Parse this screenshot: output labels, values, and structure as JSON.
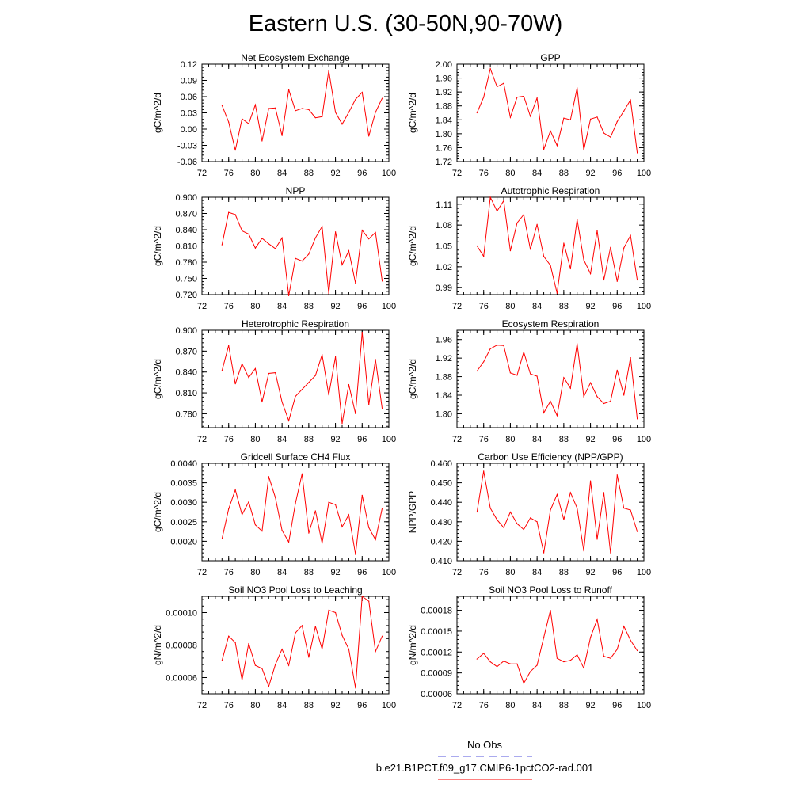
{
  "figure": {
    "title": "Eastern U.S. (30-50N,90-70W)"
  },
  "legend": {
    "entries": [
      {
        "label": "No Obs",
        "color": "#5555dd",
        "style": "dashed"
      },
      {
        "label": "b.e21.B1PCT.f09_g17.CMIP6-1pctCO2-rad.001",
        "color": "#ff0000",
        "style": "solid"
      }
    ]
  },
  "chart_data": [
    {
      "type": "line",
      "title": "Net Ecosystem Exchange",
      "ylabel": "gC/m^2/d",
      "xlabel": "",
      "xlim": [
        72,
        100
      ],
      "ylim": [
        -0.06,
        0.12
      ],
      "color": "#ff0000",
      "xticks": [
        "72",
        "76",
        "80",
        "84",
        "88",
        "92",
        "96",
        "100"
      ],
      "yticks": [
        "-0.06",
        "-0.03",
        "0.00",
        "0.03",
        "0.06",
        "0.09",
        "0.12"
      ],
      "x": [
        75,
        76,
        77,
        78,
        79,
        80,
        81,
        82,
        83,
        84,
        85,
        86,
        87,
        88,
        89,
        90,
        91,
        92,
        93,
        94,
        95,
        96,
        97,
        98,
        99
      ],
      "y": [
        0.044,
        0.013,
        -0.039,
        0.019,
        0.01,
        0.045,
        -0.022,
        0.038,
        0.039,
        -0.012,
        0.073,
        0.034,
        0.038,
        0.036,
        0.021,
        0.023,
        0.108,
        0.031,
        0.009,
        0.031,
        0.055,
        0.068,
        -0.013,
        0.031,
        0.057
      ]
    },
    {
      "type": "line",
      "title": "GPP",
      "ylabel": "gC/m^2/d",
      "xlabel": "",
      "xlim": [
        72,
        100
      ],
      "ylim": [
        1.72,
        2.0
      ],
      "color": "#ff0000",
      "xticks": [
        "72",
        "76",
        "80",
        "84",
        "88",
        "92",
        "96",
        "100"
      ],
      "yticks": [
        "1.72",
        "1.76",
        "1.80",
        "1.84",
        "1.88",
        "1.92",
        "1.96",
        "2.00"
      ],
      "x": [
        75,
        76,
        77,
        78,
        79,
        80,
        81,
        82,
        83,
        84,
        85,
        86,
        87,
        88,
        89,
        90,
        91,
        92,
        93,
        94,
        95,
        96,
        97,
        98,
        99
      ],
      "y": [
        1.86,
        1.905,
        1.987,
        1.935,
        1.945,
        1.847,
        1.905,
        1.908,
        1.85,
        1.903,
        1.755,
        1.808,
        1.766,
        1.845,
        1.84,
        1.932,
        1.753,
        1.842,
        1.848,
        1.802,
        1.79,
        1.835,
        1.865,
        1.897,
        1.745
      ]
    },
    {
      "type": "line",
      "title": "NPP",
      "ylabel": "gC/m^2/d",
      "xlabel": "",
      "xlim": [
        72,
        100
      ],
      "ylim": [
        0.72,
        0.9
      ],
      "color": "#ff0000",
      "xticks": [
        "72",
        "76",
        "80",
        "84",
        "88",
        "92",
        "96",
        "100"
      ],
      "yticks": [
        "0.720",
        "0.750",
        "0.780",
        "0.810",
        "0.840",
        "0.870",
        "0.900"
      ],
      "x": [
        75,
        76,
        77,
        78,
        79,
        80,
        81,
        82,
        83,
        84,
        85,
        86,
        87,
        88,
        89,
        90,
        91,
        92,
        93,
        94,
        95,
        96,
        97,
        98,
        99
      ],
      "y": [
        0.812,
        0.872,
        0.868,
        0.838,
        0.832,
        0.806,
        0.824,
        0.814,
        0.805,
        0.825,
        0.718,
        0.787,
        0.782,
        0.795,
        0.825,
        0.846,
        0.722,
        0.836,
        0.775,
        0.801,
        0.741,
        0.839,
        0.823,
        0.835,
        0.745
      ]
    },
    {
      "type": "line",
      "title": "Autotrophic Respiration",
      "ylabel": "gC/m^2/d",
      "xlabel": "",
      "xlim": [
        72,
        100
      ],
      "ylim": [
        0.98,
        1.12
      ],
      "color": "#ff0000",
      "xticks": [
        "72",
        "76",
        "80",
        "84",
        "88",
        "92",
        "96",
        "100"
      ],
      "yticks": [
        "0.99",
        "1.02",
        "1.05",
        "1.08",
        "1.11"
      ],
      "x": [
        75,
        76,
        77,
        78,
        79,
        80,
        81,
        82,
        83,
        84,
        85,
        86,
        87,
        88,
        89,
        90,
        91,
        92,
        93,
        94,
        95,
        96,
        97,
        98,
        99
      ],
      "y": [
        1.05,
        1.035,
        1.12,
        1.1,
        1.115,
        1.043,
        1.083,
        1.095,
        1.045,
        1.081,
        1.035,
        1.022,
        0.982,
        1.054,
        1.017,
        1.088,
        1.03,
        1.01,
        1.072,
        1.001,
        1.048,
        0.999,
        1.047,
        1.065,
        1.001
      ]
    },
    {
      "type": "line",
      "title": "Heterotrophic Respiration",
      "ylabel": "gC/m^2/d",
      "xlabel": "",
      "xlim": [
        72,
        100
      ],
      "ylim": [
        0.76,
        0.9
      ],
      "color": "#ff0000",
      "xticks": [
        "72",
        "76",
        "80",
        "84",
        "88",
        "92",
        "96",
        "100"
      ],
      "yticks": [
        "0.780",
        "0.810",
        "0.840",
        "0.870",
        "0.900"
      ],
      "x": [
        75,
        76,
        77,
        78,
        79,
        80,
        81,
        82,
        83,
        84,
        85,
        86,
        87,
        88,
        89,
        90,
        91,
        92,
        93,
        94,
        95,
        96,
        97,
        98,
        99
      ],
      "y": [
        0.842,
        0.878,
        0.823,
        0.852,
        0.832,
        0.845,
        0.797,
        0.838,
        0.839,
        0.797,
        0.77,
        0.805,
        0.815,
        0.825,
        0.835,
        0.865,
        0.807,
        0.862,
        0.766,
        0.822,
        0.78,
        0.897,
        0.793,
        0.858,
        0.787
      ]
    },
    {
      "type": "line",
      "title": "Ecosystem Respiration",
      "ylabel": "gC/m^2/d",
      "xlabel": "",
      "xlim": [
        72,
        100
      ],
      "ylim": [
        1.77,
        1.98
      ],
      "color": "#ff0000",
      "xticks": [
        "72",
        "76",
        "80",
        "84",
        "88",
        "92",
        "96",
        "100"
      ],
      "yticks": [
        "1.80",
        "1.84",
        "1.88",
        "1.92",
        "1.96"
      ],
      "x": [
        75,
        76,
        77,
        78,
        79,
        80,
        81,
        82,
        83,
        84,
        85,
        86,
        87,
        88,
        89,
        90,
        91,
        92,
        93,
        94,
        95,
        96,
        97,
        98,
        99
      ],
      "y": [
        1.892,
        1.912,
        1.94,
        1.948,
        1.947,
        1.888,
        1.883,
        1.933,
        1.886,
        1.881,
        1.802,
        1.827,
        1.796,
        1.878,
        1.855,
        1.951,
        1.837,
        1.867,
        1.837,
        1.822,
        1.827,
        1.894,
        1.84,
        1.921,
        1.789
      ]
    },
    {
      "type": "line",
      "title": "Gridcell Surface CH4 Flux",
      "ylabel": "gC/m^2/d",
      "xlabel": "",
      "xlim": [
        72,
        100
      ],
      "ylim": [
        0.0015,
        0.004
      ],
      "color": "#ff0000",
      "xticks": [
        "72",
        "76",
        "80",
        "84",
        "88",
        "92",
        "96",
        "100"
      ],
      "yticks": [
        "0.0020",
        "0.0025",
        "0.0030",
        "0.0035",
        "0.0040"
      ],
      "x": [
        75,
        76,
        77,
        78,
        79,
        80,
        81,
        82,
        83,
        84,
        85,
        86,
        87,
        88,
        89,
        90,
        91,
        92,
        93,
        94,
        95,
        96,
        97,
        98,
        99
      ],
      "y": [
        0.00206,
        0.00283,
        0.00332,
        0.00268,
        0.00301,
        0.00242,
        0.00226,
        0.00366,
        0.00312,
        0.00228,
        0.00198,
        0.00297,
        0.00373,
        0.00221,
        0.00278,
        0.00195,
        0.003,
        0.00294,
        0.00237,
        0.00268,
        0.00166,
        0.00318,
        0.00235,
        0.00204,
        0.00285
      ]
    },
    {
      "type": "line",
      "title": "Carbon Use Efficiency (NPP/GPP)",
      "ylabel": "NPP/GPP",
      "xlabel": "",
      "xlim": [
        72,
        100
      ],
      "ylim": [
        0.41,
        0.46
      ],
      "color": "#ff0000",
      "xticks": [
        "72",
        "76",
        "80",
        "84",
        "88",
        "92",
        "96",
        "100"
      ],
      "yticks": [
        "0.410",
        "0.420",
        "0.430",
        "0.440",
        "0.450",
        "0.460"
      ],
      "x": [
        75,
        76,
        77,
        78,
        79,
        80,
        81,
        82,
        83,
        84,
        85,
        86,
        87,
        88,
        89,
        90,
        91,
        92,
        93,
        94,
        95,
        96,
        97,
        98,
        99
      ],
      "y": [
        0.435,
        0.456,
        0.437,
        0.431,
        0.427,
        0.435,
        0.429,
        0.426,
        0.432,
        0.43,
        0.414,
        0.436,
        0.444,
        0.431,
        0.445,
        0.437,
        0.415,
        0.451,
        0.421,
        0.445,
        0.414,
        0.454,
        0.437,
        0.436,
        0.425
      ]
    },
    {
      "type": "line",
      "title": "Soil NO3 Pool Loss to Leaching",
      "ylabel": "gN/m^2/d",
      "xlabel": "",
      "xlim": [
        72,
        100
      ],
      "ylim": [
        5e-05,
        0.00011
      ],
      "color": "#ff0000",
      "xticks": [
        "72",
        "76",
        "80",
        "84",
        "88",
        "92",
        "96",
        "100"
      ],
      "yticks": [
        "0.00006",
        "0.00008",
        "0.00010"
      ],
      "x": [
        75,
        76,
        77,
        78,
        79,
        80,
        81,
        82,
        83,
        84,
        85,
        86,
        87,
        88,
        89,
        90,
        91,
        92,
        93,
        94,
        95,
        96,
        97,
        98,
        99
      ],
      "y": [
        7.05e-05,
        8.55e-05,
        8.15e-05,
        5.85e-05,
        8.1e-05,
        6.75e-05,
        6.55e-05,
        5.45e-05,
        6.8e-05,
        7.75e-05,
        6.75e-05,
        8.75e-05,
        9.2e-05,
        7.25e-05,
        9.15e-05,
        7.75e-05,
        0.0001015,
        0.0001,
        8.6e-05,
        7.75e-05,
        5.35e-05,
        0.00011,
        0.000107,
        7.6e-05,
        8.55e-05
      ]
    },
    {
      "type": "line",
      "title": "Soil NO3 Pool Loss to Runoff",
      "ylabel": "gN/m^2/d",
      "xlabel": "",
      "xlim": [
        72,
        100
      ],
      "ylim": [
        6e-05,
        0.0002
      ],
      "color": "#ff0000",
      "xticks": [
        "72",
        "76",
        "80",
        "84",
        "88",
        "92",
        "96",
        "100"
      ],
      "yticks": [
        "0.00006",
        "0.00009",
        "0.00012",
        "0.00015",
        "0.00018"
      ],
      "x": [
        75,
        76,
        77,
        78,
        79,
        80,
        81,
        82,
        83,
        84,
        85,
        86,
        87,
        88,
        89,
        90,
        91,
        92,
        93,
        94,
        95,
        96,
        97,
        98,
        99
      ],
      "y": [
        0.00011,
        0.000118,
        0.000106,
        9.9e-05,
        0.000107,
        0.000103,
        0.000103,
        7.5e-05,
        9.2e-05,
        0.000101,
        0.000141,
        0.00018,
        0.000111,
        0.000106,
        0.000108,
        0.000116,
        9.7e-05,
        0.000141,
        0.000167,
        0.000114,
        0.000111,
        0.000124,
        0.000157,
        0.000137,
        0.000122
      ]
    }
  ]
}
